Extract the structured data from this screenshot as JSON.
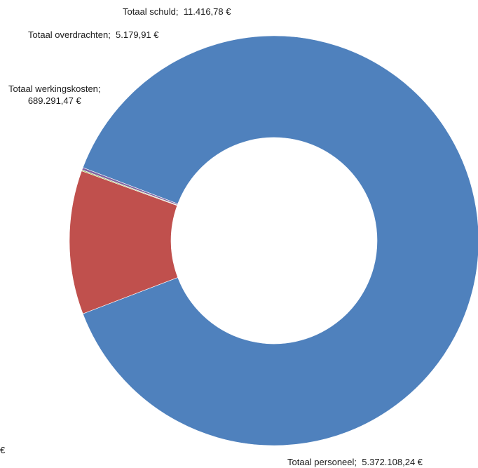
{
  "chart_data": {
    "type": "pie",
    "variant": "donut",
    "title": "",
    "slices": [
      {
        "name": "Totaal personeel",
        "value": 5372108.24,
        "value_label": "5.372.108,24 €",
        "color": "#4f81bd"
      },
      {
        "name": "Totaal werkingskosten",
        "value": 689291.47,
        "value_label": "689.291,47 €",
        "color": "#c0504d"
      },
      {
        "name": "Totaal overdrachten",
        "value": 5179.91,
        "value_label": "5.179,91 €",
        "color": "#9bbb59"
      },
      {
        "name": "Totaal schuld",
        "value": 11416.78,
        "value_label": "11.416,78 €",
        "color": "#8064a2"
      }
    ],
    "legend": "none",
    "separator": ";",
    "truncated_left_label": "€"
  }
}
